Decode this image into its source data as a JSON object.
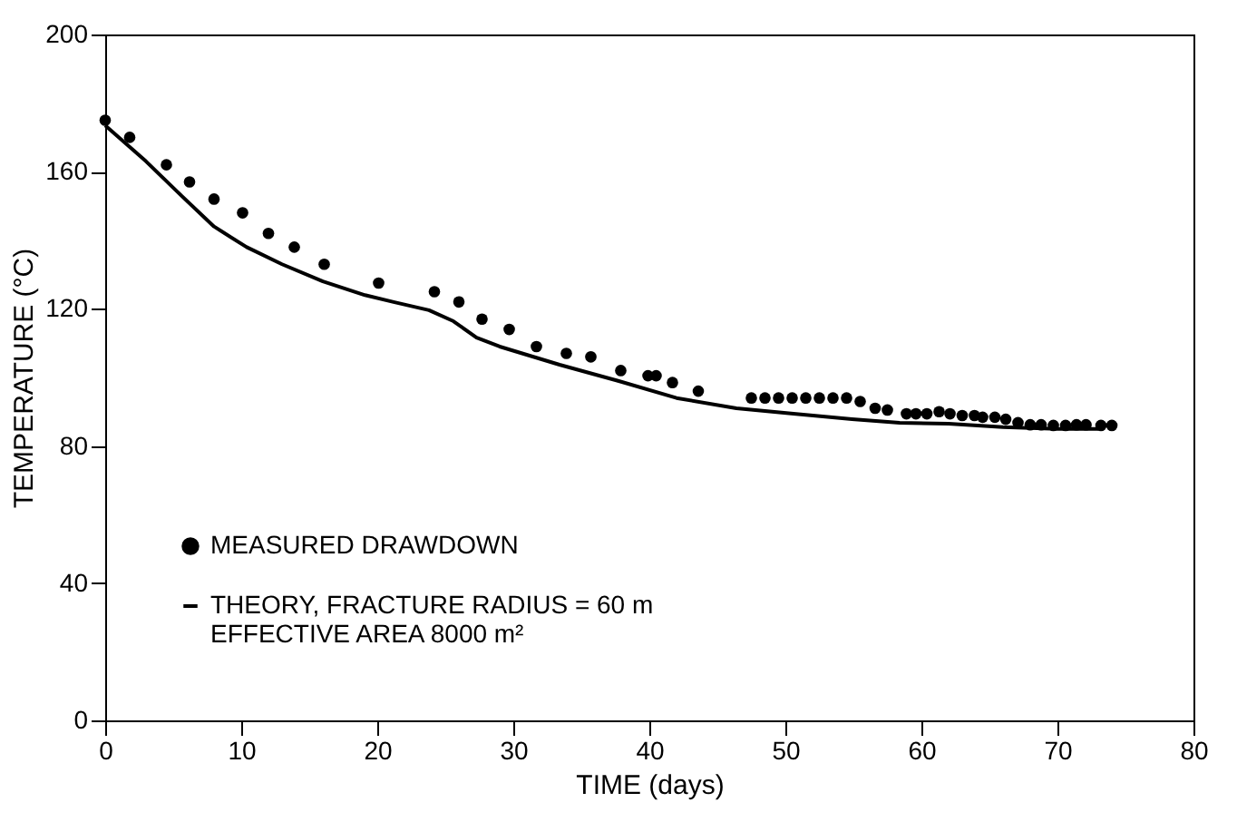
{
  "chart_data": {
    "type": "scatter",
    "xlabel": "TIME (days)",
    "ylabel": "TEMPERATURE (°C)",
    "xlim": [
      0,
      80
    ],
    "ylim": [
      0,
      200
    ],
    "xticks": [
      0,
      10,
      20,
      30,
      40,
      50,
      60,
      70,
      80
    ],
    "yticks": [
      0,
      40,
      80,
      120,
      160,
      200
    ],
    "grid": false,
    "legend": "bottom left",
    "series": [
      {
        "name": "MEASURED DRAWDOWN",
        "marker": "circle",
        "color": "#000000",
        "x": [
          0,
          1.8,
          4.5,
          6.2,
          8,
          10.1,
          12,
          13.9,
          16.1,
          20.1,
          24.2,
          26,
          27.7,
          29.7,
          31.7,
          33.9,
          35.7,
          37.9,
          39.9,
          40.5,
          41.7,
          43.6,
          47.5,
          48.5,
          49.5,
          50.5,
          51.5,
          52.5,
          53.5,
          54.5,
          55.5,
          56.6,
          57.5,
          58.9,
          59.6,
          60.4,
          61.3,
          62.1,
          63,
          63.9,
          64.5,
          65.4,
          66.2,
          67.1,
          68,
          68.8,
          69.7,
          70.6,
          71.4,
          72.1,
          73.2,
          74
        ],
        "values": [
          175,
          170,
          162,
          157,
          152,
          148,
          142,
          138,
          133,
          127.5,
          125,
          122,
          117,
          114,
          109,
          107,
          106,
          102,
          100.5,
          100.5,
          98.5,
          96,
          94,
          94,
          94,
          94,
          94,
          94,
          94,
          94,
          93,
          91,
          90.5,
          89.4,
          89.4,
          89.4,
          90,
          89.4,
          88.9,
          88.9,
          88.4,
          88.4,
          87.8,
          86.8,
          86.2,
          86.2,
          86,
          86,
          86.2,
          86.2,
          86,
          86
        ]
      },
      {
        "name": "THEORY, FRACTURE RADIUS = 60 m\nEFFECTIVE AREA 8000 m²",
        "type": "line",
        "line_style": "solid",
        "color": "#000000",
        "x": [
          0,
          3,
          5.6,
          8,
          10.4,
          13,
          16,
          19.1,
          21.2,
          23.8,
          25.6,
          27.3,
          29,
          33.4,
          37.7,
          42,
          46.4,
          50.6,
          54.9,
          58.4,
          62,
          66,
          70,
          73
        ],
        "values": [
          173.5,
          163,
          153,
          144,
          138,
          133,
          128,
          124,
          122,
          119.6,
          116.4,
          111.6,
          109,
          103.7,
          99,
          94,
          91,
          89.4,
          87.8,
          86.8,
          86.5,
          85.5,
          85,
          85
        ]
      }
    ]
  }
}
